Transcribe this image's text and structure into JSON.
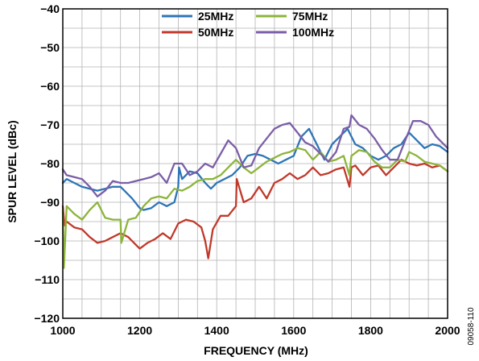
{
  "figure_id": "09058-110",
  "chart_data": {
    "type": "line",
    "title": "",
    "xlabel": "FREQUENCY (MHz)",
    "ylabel": "SPUR LEVEL (dBc)",
    "xlim": [
      1000,
      2000
    ],
    "ylim": [
      -120,
      -40
    ],
    "xticks": [
      1000,
      1200,
      1400,
      1600,
      1800,
      2000
    ],
    "yticks": [
      -120,
      -110,
      -100,
      -90,
      -80,
      -70,
      -60,
      -50,
      -40
    ],
    "grid": true,
    "legend_position": "top-center",
    "series": [
      {
        "name": "25MHz",
        "color": "#2e75b6",
        "x": [
          1000,
          1010,
          1030,
          1050,
          1070,
          1090,
          1110,
          1130,
          1150,
          1160,
          1180,
          1200,
          1210,
          1230,
          1250,
          1270,
          1290,
          1300,
          1302,
          1310,
          1330,
          1350,
          1370,
          1385,
          1400,
          1420,
          1440,
          1460,
          1480,
          1500,
          1520,
          1540,
          1560,
          1580,
          1600,
          1620,
          1640,
          1660,
          1680,
          1700,
          1720,
          1740,
          1760,
          1780,
          1800,
          1820,
          1840,
          1860,
          1880,
          1900,
          1920,
          1940,
          1960,
          1980,
          2000
        ],
        "y": [
          -85,
          -84,
          -85,
          -86,
          -86.5,
          -87,
          -86.5,
          -86,
          -86,
          -87,
          -89,
          -91.5,
          -92,
          -91.5,
          -90,
          -91,
          -90,
          -86,
          -81,
          -84,
          -82,
          -82.5,
          -85,
          -86.5,
          -85,
          -84,
          -83,
          -81,
          -78,
          -77.5,
          -78,
          -79,
          -80,
          -79,
          -78,
          -73,
          -71,
          -75,
          -79,
          -75,
          -73,
          -71,
          -75,
          -76,
          -78,
          -79,
          -78,
          -76,
          -75,
          -72,
          -74,
          -76,
          -75,
          -75.5,
          -77
        ]
      },
      {
        "name": "50MHz",
        "color": "#c0392b",
        "x": [
          1000,
          1005,
          1010,
          1030,
          1050,
          1070,
          1090,
          1110,
          1130,
          1150,
          1170,
          1190,
          1200,
          1220,
          1240,
          1260,
          1280,
          1300,
          1320,
          1340,
          1360,
          1370,
          1378,
          1390,
          1410,
          1430,
          1450,
          1452,
          1470,
          1490,
          1510,
          1530,
          1550,
          1570,
          1590,
          1610,
          1630,
          1650,
          1670,
          1690,
          1710,
          1730,
          1745,
          1750,
          1760,
          1780,
          1800,
          1820,
          1840,
          1860,
          1880,
          1900,
          1920,
          1940,
          1960,
          1980,
          2000
        ],
        "y": [
          -91,
          -96,
          -95,
          -96.5,
          -97,
          -99,
          -100.5,
          -100,
          -99,
          -98,
          -99,
          -101,
          -102,
          -100.5,
          -99.5,
          -98,
          -99.5,
          -95.5,
          -94.5,
          -95,
          -96.5,
          -100,
          -104.5,
          -97,
          -93.5,
          -93.5,
          -91,
          -84,
          -90,
          -89,
          -86,
          -89,
          -85,
          -84,
          -82.5,
          -84,
          -83,
          -81,
          -83,
          -82.5,
          -81.5,
          -81,
          -86,
          -81,
          -80.5,
          -83,
          -81,
          -80.5,
          -83,
          -81,
          -79,
          -80,
          -80.5,
          -80,
          -81,
          -80.5,
          -82
        ]
      },
      {
        "name": "75MHz",
        "color": "#8db43c",
        "x": [
          1000,
          1003,
          1010,
          1030,
          1050,
          1070,
          1090,
          1110,
          1130,
          1150,
          1152,
          1170,
          1190,
          1210,
          1230,
          1250,
          1270,
          1290,
          1310,
          1330,
          1350,
          1370,
          1390,
          1410,
          1430,
          1450,
          1470,
          1490,
          1510,
          1530,
          1550,
          1570,
          1590,
          1610,
          1630,
          1650,
          1670,
          1690,
          1710,
          1730,
          1745,
          1750,
          1770,
          1790,
          1810,
          1830,
          1850,
          1870,
          1890,
          1900,
          1920,
          1940,
          1960,
          1980,
          2000
        ],
        "y": [
          -92,
          -107,
          -91,
          -93,
          -94.5,
          -92,
          -90,
          -94,
          -94.5,
          -94.5,
          -100.5,
          -94.5,
          -94,
          -91,
          -89,
          -88.5,
          -89,
          -86.5,
          -87,
          -86,
          -84.5,
          -84,
          -84,
          -83,
          -81,
          -79,
          -81,
          -82.5,
          -81,
          -79.5,
          -78.5,
          -77.5,
          -77,
          -76,
          -76.5,
          -79,
          -77,
          -79.5,
          -79,
          -78,
          -83,
          -78,
          -76.5,
          -77,
          -79.5,
          -81,
          -81,
          -79,
          -79.5,
          -77,
          -78,
          -79.5,
          -80,
          -80.5,
          -82
        ]
      },
      {
        "name": "100MHz",
        "color": "#7b5ea7",
        "x": [
          1000,
          1010,
          1030,
          1050,
          1070,
          1090,
          1110,
          1130,
          1150,
          1170,
          1190,
          1210,
          1230,
          1250,
          1270,
          1290,
          1310,
          1330,
          1350,
          1370,
          1390,
          1410,
          1430,
          1450,
          1470,
          1490,
          1510,
          1530,
          1550,
          1570,
          1590,
          1610,
          1630,
          1650,
          1670,
          1690,
          1710,
          1730,
          1745,
          1750,
          1770,
          1790,
          1810,
          1830,
          1850,
          1870,
          1890,
          1910,
          1930,
          1950,
          1970,
          2000
        ],
        "y": [
          -81.5,
          -83,
          -83.5,
          -84,
          -86,
          -88.5,
          -87,
          -84.5,
          -85,
          -85,
          -84.5,
          -84,
          -83.5,
          -82.5,
          -85,
          -80,
          -80,
          -83,
          -82,
          -80,
          -81,
          -77.5,
          -74,
          -76,
          -81,
          -80.5,
          -76,
          -73.5,
          -71,
          -70,
          -69.5,
          -72,
          -74.5,
          -75.5,
          -77.5,
          -79.5,
          -77,
          -71,
          -70.5,
          -67.5,
          -70,
          -71,
          -73.5,
          -76.5,
          -79,
          -79,
          -74,
          -69,
          -69,
          -70,
          -73,
          -76
        ]
      }
    ]
  }
}
